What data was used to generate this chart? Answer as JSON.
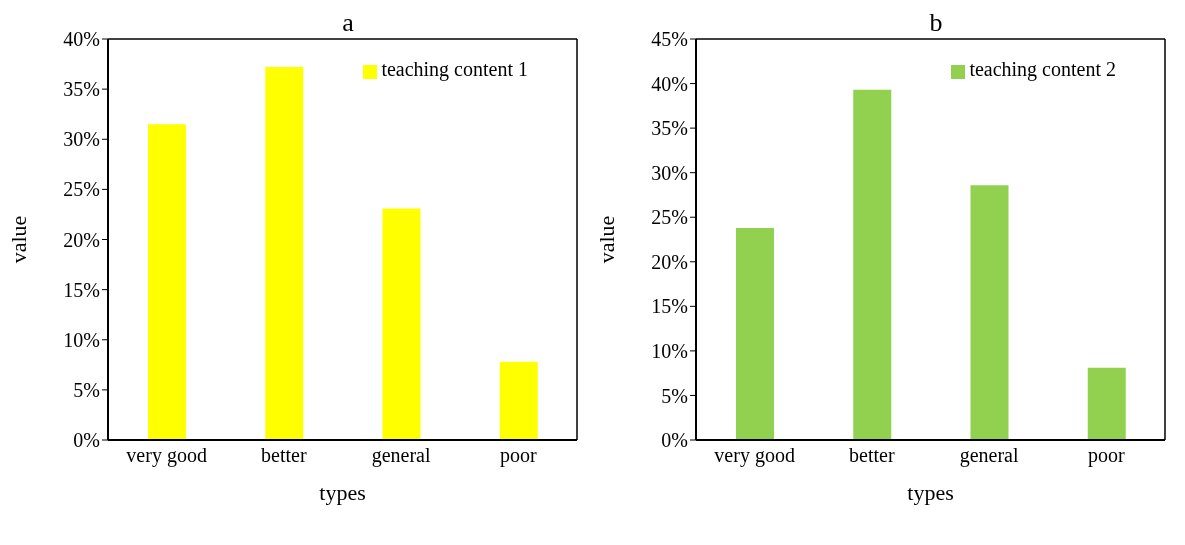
{
  "chart_data": [
    {
      "type": "bar",
      "title": "a",
      "xlabel": "types",
      "ylabel": "value",
      "categories": [
        "very good",
        "better",
        "general",
        "poor"
      ],
      "series": [
        {
          "name": "teaching content 1",
          "color": "#ffff00",
          "values": [
            31.5,
            37.2,
            23.1,
            7.8
          ]
        }
      ],
      "ylim": [
        0,
        40
      ],
      "yticks": [
        {
          "value": 0,
          "label": "0%"
        },
        {
          "value": 5,
          "label": "5%"
        },
        {
          "value": 10,
          "label": "10%"
        },
        {
          "value": 15,
          "label": "15%"
        },
        {
          "value": 20,
          "label": "20%"
        },
        {
          "value": 25,
          "label": "25%"
        },
        {
          "value": 30,
          "label": "30%"
        },
        {
          "value": 35,
          "label": "35%"
        },
        {
          "value": 40,
          "label": "40%"
        }
      ],
      "grid": false,
      "legend": "top right"
    },
    {
      "type": "bar",
      "title": "b",
      "xlabel": "types",
      "ylabel": "value",
      "categories": [
        "very good",
        "better",
        "general",
        "poor"
      ],
      "series": [
        {
          "name": "teaching content 2",
          "color": "#92d050",
          "values": [
            23.8,
            39.3,
            28.6,
            8.1
          ]
        }
      ],
      "ylim": [
        0,
        45
      ],
      "yticks": [
        {
          "value": 0,
          "label": "0%"
        },
        {
          "value": 5,
          "label": "5%"
        },
        {
          "value": 10,
          "label": "10%"
        },
        {
          "value": 15,
          "label": "15%"
        },
        {
          "value": 20,
          "label": "20%"
        },
        {
          "value": 25,
          "label": "25%"
        },
        {
          "value": 30,
          "label": "30%"
        },
        {
          "value": 35,
          "label": "35%"
        },
        {
          "value": 40,
          "label": "40%"
        },
        {
          "value": 45,
          "label": "45%"
        }
      ],
      "grid": false,
      "legend": "top right"
    }
  ]
}
